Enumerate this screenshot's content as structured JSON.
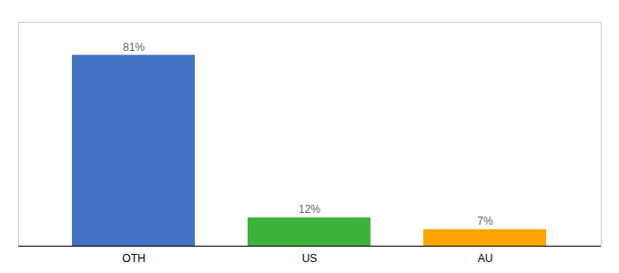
{
  "chart_data": {
    "type": "bar",
    "categories": [
      "OTH",
      "US",
      "AU"
    ],
    "values": [
      81,
      12,
      7
    ],
    "value_labels": [
      "81%",
      "12%",
      "7%"
    ],
    "colors": [
      "#4472C4",
      "#3DB33D",
      "#FFA500"
    ],
    "ylim": [
      0,
      95
    ],
    "data_labels": true,
    "tick_labels": "x",
    "grid": false
  }
}
